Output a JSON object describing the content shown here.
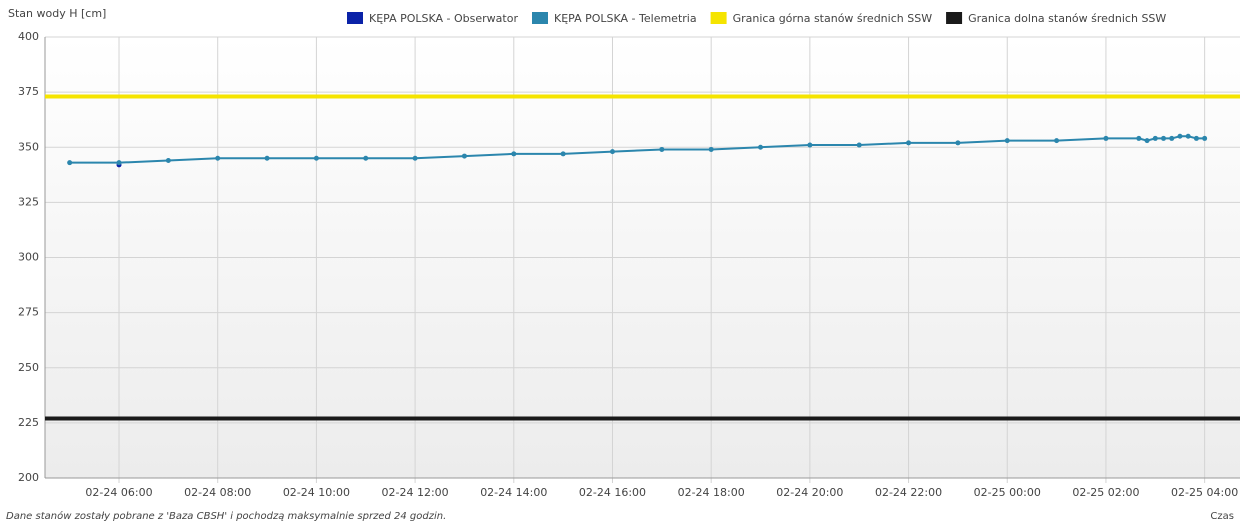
{
  "chart_data": {
    "type": "line",
    "ylabel": "Stan wody H [cm]",
    "xlabel": "Czas",
    "note": "Dane stanów zostały pobrane z 'Baza CBSH' i pochodzą maksymalnie sprzed 24 godzin.",
    "xlim": [
      "02-24 04:30",
      "02-25 04:43"
    ],
    "xticks": [
      "02-24 06:00",
      "02-24 08:00",
      "02-24 10:00",
      "02-24 12:00",
      "02-24 14:00",
      "02-24 16:00",
      "02-24 18:00",
      "02-24 20:00",
      "02-24 22:00",
      "02-25 00:00",
      "02-25 02:00",
      "02-25 04:00"
    ],
    "ylim": [
      200,
      400
    ],
    "yticks": [
      200,
      225,
      250,
      275,
      300,
      325,
      350,
      375,
      400
    ],
    "grid": true,
    "series": [
      {
        "name": "KĘPA POLSKA - Obserwator",
        "color": "#0a22a8",
        "x": [
          "02-24 06:00"
        ],
        "values": [
          342
        ]
      },
      {
        "name": "KĘPA POLSKA - Telemetria",
        "color": "#2b86ad",
        "x": [
          "02-24 05:00",
          "02-24 06:00",
          "02-24 07:00",
          "02-24 08:00",
          "02-24 09:00",
          "02-24 10:00",
          "02-24 11:00",
          "02-24 12:00",
          "02-24 13:00",
          "02-24 14:00",
          "02-24 15:00",
          "02-24 16:00",
          "02-24 17:00",
          "02-24 18:00",
          "02-24 19:00",
          "02-24 20:00",
          "02-24 21:00",
          "02-24 22:00",
          "02-24 23:00",
          "02-25 00:00",
          "02-25 01:00",
          "02-25 02:00",
          "02-25 02:40",
          "02-25 02:50",
          "02-25 03:00",
          "02-25 03:10",
          "02-25 03:20",
          "02-25 03:30",
          "02-25 03:40",
          "02-25 03:50",
          "02-25 04:00"
        ],
        "values": [
          343,
          343,
          344,
          345,
          345,
          345,
          345,
          345,
          346,
          347,
          347,
          348,
          349,
          349,
          350,
          351,
          351,
          352,
          352,
          353,
          353,
          354,
          354,
          353,
          354,
          354,
          354,
          355,
          355,
          354,
          354
        ]
      },
      {
        "name": "Granica górna stanów średnich SSW",
        "color": "#f5e400",
        "x": [
          "02-24 04:30",
          "02-25 04:43"
        ],
        "values": [
          373,
          373
        ]
      },
      {
        "name": "Granica dolna stanów średnich SSW",
        "color": "#1a1a1a",
        "x": [
          "02-24 04:30",
          "02-25 04:43"
        ],
        "values": [
          227,
          227
        ]
      }
    ]
  }
}
